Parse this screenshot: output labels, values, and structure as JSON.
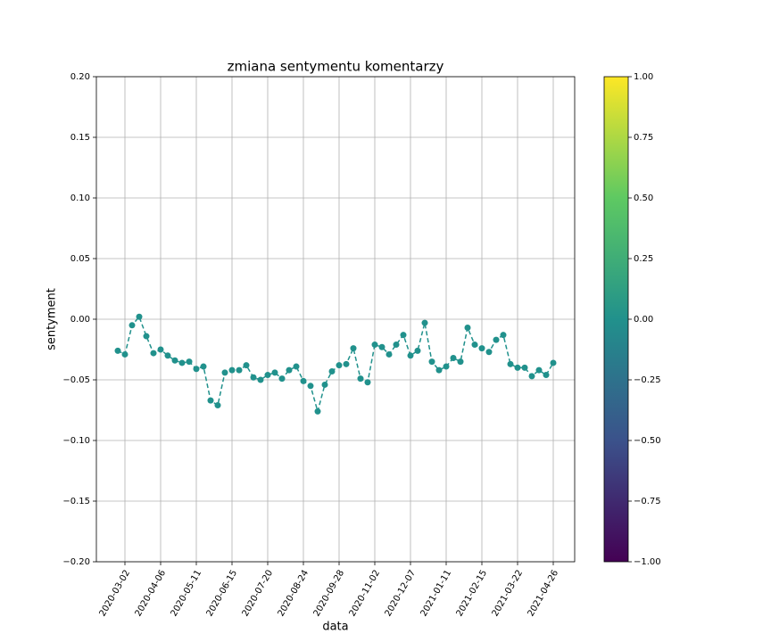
{
  "chart_data": {
    "type": "line",
    "title": "zmiana sentymentu komentarzy",
    "x_label": "data",
    "y_label": "sentyment",
    "x": [
      "2020-02-24",
      "2020-03-02",
      "2020-03-09",
      "2020-03-16",
      "2020-03-23",
      "2020-03-30",
      "2020-04-06",
      "2020-04-13",
      "2020-04-20",
      "2020-04-27",
      "2020-05-04",
      "2020-05-11",
      "2020-05-18",
      "2020-05-25",
      "2020-06-01",
      "2020-06-08",
      "2020-06-15",
      "2020-06-22",
      "2020-06-29",
      "2020-07-06",
      "2020-07-13",
      "2020-07-20",
      "2020-07-27",
      "2020-08-03",
      "2020-08-10",
      "2020-08-17",
      "2020-08-24",
      "2020-08-31",
      "2020-09-07",
      "2020-09-14",
      "2020-09-21",
      "2020-09-28",
      "2020-10-05",
      "2020-10-12",
      "2020-10-19",
      "2020-10-26",
      "2020-11-02",
      "2020-11-09",
      "2020-11-16",
      "2020-11-23",
      "2020-11-30",
      "2020-12-07",
      "2020-12-14",
      "2020-12-21",
      "2020-12-28",
      "2021-01-04",
      "2021-01-11",
      "2021-01-18",
      "2021-01-25",
      "2021-02-01",
      "2021-02-08",
      "2021-02-15",
      "2021-02-22",
      "2021-03-01",
      "2021-03-08",
      "2021-03-15",
      "2021-03-22",
      "2021-03-29",
      "2021-04-05",
      "2021-04-12",
      "2021-04-19",
      "2021-04-26"
    ],
    "series": [
      {
        "color": "#21918c",
        "values": [
          -0.026,
          -0.029,
          -0.005,
          0.002,
          -0.014,
          -0.028,
          -0.025,
          -0.03,
          -0.034,
          -0.036,
          -0.035,
          -0.041,
          -0.039,
          -0.067,
          -0.071,
          -0.044,
          -0.042,
          -0.042,
          -0.038,
          -0.048,
          -0.05,
          -0.046,
          -0.044,
          -0.049,
          -0.042,
          -0.039,
          -0.051,
          -0.055,
          -0.076,
          -0.054,
          -0.043,
          -0.038,
          -0.037,
          -0.024,
          -0.049,
          -0.052,
          -0.021,
          -0.023,
          -0.029,
          -0.021,
          -0.013,
          -0.03,
          -0.026,
          -0.003,
          -0.035,
          -0.042,
          -0.039,
          -0.032,
          -0.035,
          -0.007,
          -0.021,
          -0.024,
          -0.027,
          -0.017,
          -0.013,
          -0.037,
          -0.04,
          -0.04,
          -0.047,
          -0.042,
          -0.046,
          -0.036
        ]
      }
    ],
    "xlim": [
      "2020-02-03",
      "2021-05-17"
    ],
    "xticks": [
      "2020-03-02",
      "2020-04-06",
      "2020-05-11",
      "2020-06-15",
      "2020-07-20",
      "2020-08-24",
      "2020-09-28",
      "2020-11-02",
      "2020-12-07",
      "2021-01-11",
      "2021-02-15",
      "2021-03-22",
      "2021-04-26"
    ],
    "ylim": [
      -0.2,
      0.2
    ],
    "yticks": [
      {
        "value": 0.2,
        "label": "0.20"
      },
      {
        "value": 0.15,
        "label": "0.15"
      },
      {
        "value": 0.1,
        "label": "0.10"
      },
      {
        "value": 0.05,
        "label": "0.05"
      },
      {
        "value": 0,
        "label": "0.00"
      },
      {
        "value": -0.05,
        "label": "−0.05"
      },
      {
        "value": -0.1,
        "label": "−0.10"
      },
      {
        "value": -0.15,
        "label": "−0.15"
      },
      {
        "value": -0.2,
        "label": "−0.20"
      }
    ],
    "grid": true,
    "line_style": "dashed",
    "colorbar": {
      "colormap": [
        "#440154",
        "#3b528b",
        "#21918c",
        "#5ec962",
        "#fde725"
      ],
      "lim": [
        -1,
        1
      ],
      "ticks": [
        {
          "value": 1,
          "label": "1.00"
        },
        {
          "value": 0.75,
          "label": "0.75"
        },
        {
          "value": 0.5,
          "label": "0.50"
        },
        {
          "value": 0.25,
          "label": "0.25"
        },
        {
          "value": 0,
          "label": "0.00"
        },
        {
          "value": -0.25,
          "label": "−0.25"
        },
        {
          "value": -0.5,
          "label": "−0.50"
        },
        {
          "value": -0.75,
          "label": "−0.75"
        },
        {
          "value": -1,
          "label": "−1.00"
        }
      ]
    }
  }
}
